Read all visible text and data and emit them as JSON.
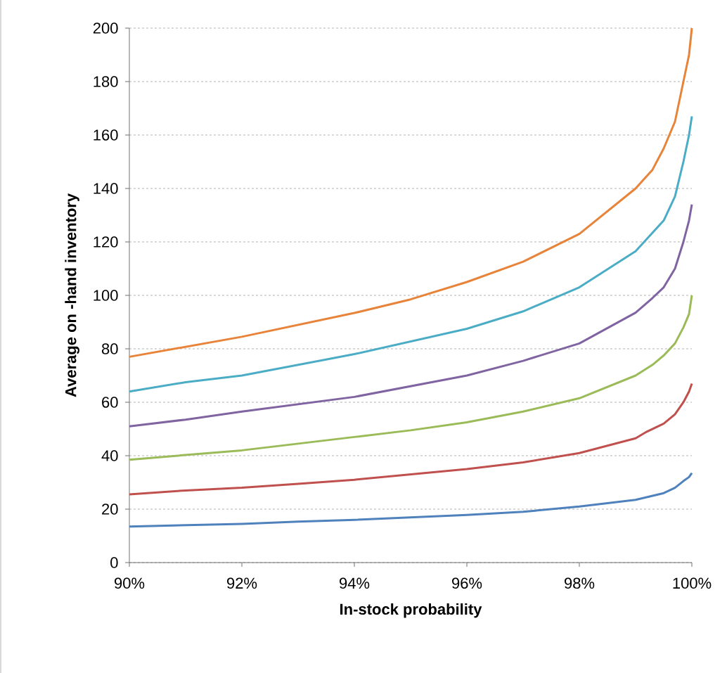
{
  "chart_data": {
    "type": "line",
    "xlabel": "In-stock probability",
    "ylabel": "Average on -hand inventory",
    "xlim": [
      90,
      100
    ],
    "ylim": [
      0,
      200
    ],
    "xticks": [
      {
        "value": 90,
        "label": "90%"
      },
      {
        "value": 92,
        "label": "92%"
      },
      {
        "value": 94,
        "label": "94%"
      },
      {
        "value": 96,
        "label": "96%"
      },
      {
        "value": 98,
        "label": "98%"
      },
      {
        "value": 100,
        "label": "100%"
      }
    ],
    "yticks": [
      0,
      20,
      40,
      60,
      80,
      100,
      120,
      140,
      160,
      180,
      200
    ],
    "grid": "y",
    "series": [
      {
        "color": "#4f81bd",
        "x": [
          90,
          92,
          93,
          94,
          96,
          97,
          98,
          99,
          99.5,
          99.7,
          99.85,
          99.95,
          100
        ],
        "values": [
          13.5,
          14.5,
          15.3,
          16,
          17.8,
          19,
          21,
          23.5,
          26,
          28,
          30.5,
          32,
          33.5
        ]
      },
      {
        "color": "#c0504d",
        "x": [
          90,
          91,
          92,
          93,
          94,
          96,
          97,
          98,
          99,
          99.2,
          99.5,
          99.7,
          99.85,
          99.95,
          100
        ],
        "values": [
          25.5,
          27,
          28,
          29.5,
          31,
          35,
          37.5,
          41,
          46.5,
          49,
          52,
          55.5,
          60,
          64,
          67
        ]
      },
      {
        "color": "#9bbb59",
        "x": [
          90,
          92,
          94,
          95,
          96,
          97,
          98,
          99,
          99.3,
          99.5,
          99.7,
          99.85,
          99.95,
          100
        ],
        "values": [
          38.5,
          42,
          47,
          49.5,
          52.5,
          56.5,
          61.5,
          70,
          74,
          77.5,
          82,
          88,
          93,
          100
        ]
      },
      {
        "color": "#8064a2",
        "x": [
          90,
          91,
          92,
          94,
          96,
          97,
          98,
          99,
          99.3,
          99.5,
          99.7,
          99.85,
          99.95,
          100
        ],
        "values": [
          51,
          53.5,
          56.5,
          62,
          70,
          75.5,
          82,
          93.5,
          99,
          103,
          110,
          120,
          128,
          134
        ]
      },
      {
        "color": "#4bacc6",
        "x": [
          90,
          91,
          92,
          94,
          96,
          97,
          98,
          99,
          99.5,
          99.7,
          99.85,
          99.95,
          100
        ],
        "values": [
          64,
          67.5,
          70,
          78,
          87.5,
          94,
          103,
          116.5,
          128,
          137,
          150,
          160,
          167
        ]
      },
      {
        "color": "#e8833a",
        "x": [
          90,
          92,
          94,
          95,
          96,
          97,
          98,
          99,
          99.3,
          99.5,
          99.7,
          99.85,
          99.95,
          100
        ],
        "values": [
          77,
          84.5,
          93.4,
          98.5,
          105,
          112.6,
          123,
          140,
          147,
          155,
          165,
          180,
          190,
          200
        ]
      }
    ]
  }
}
